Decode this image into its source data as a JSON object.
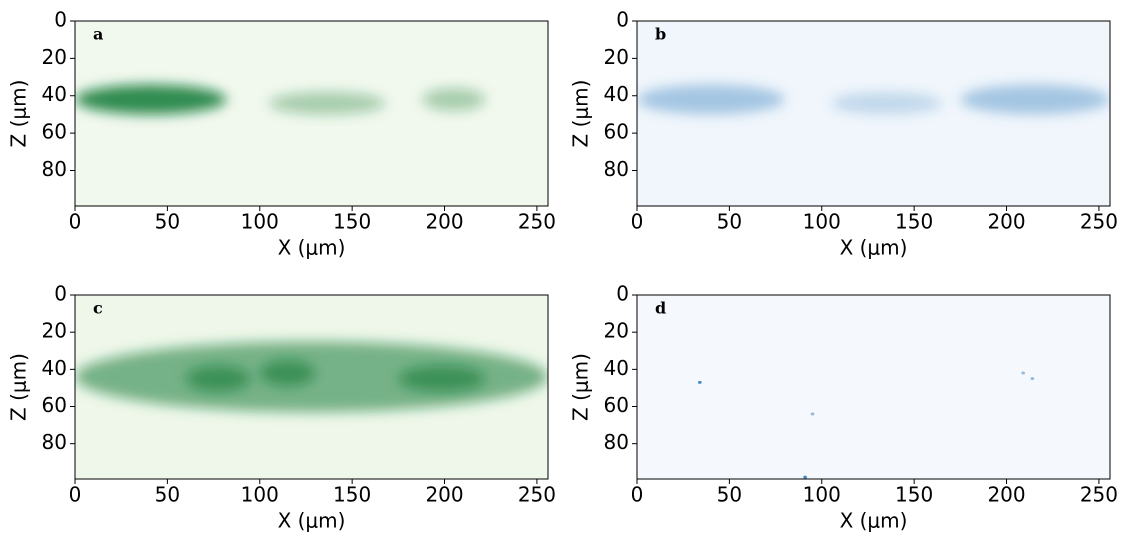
{
  "chart_data": [
    {
      "type": "image",
      "panel": "a",
      "xlabel": "X (μm)",
      "ylabel": "Z (μm)",
      "background": "#f1f8ee",
      "color": "#137a36",
      "xlim": [
        0,
        256
      ],
      "ylim": [
        99,
        0
      ],
      "xticks": [
        0,
        50,
        100,
        150,
        200,
        250
      ],
      "yticks": [
        0,
        20,
        40,
        60,
        80
      ],
      "bands": [
        {
          "x0": 0,
          "x1": 82,
          "z": 42,
          "height": 16,
          "intensity": 0.85
        },
        {
          "x0": 105,
          "x1": 168,
          "z": 44,
          "height": 12,
          "intensity": 0.35
        },
        {
          "x0": 188,
          "x1": 222,
          "z": 42,
          "height": 12,
          "intensity": 0.35
        }
      ]
    },
    {
      "type": "image",
      "panel": "b",
      "xlabel": "X (μm)",
      "ylabel": "Z (μm)",
      "background": "#f1f6fc",
      "color": "#2f7ebc",
      "xlim": [
        0,
        256
      ],
      "ylim": [
        99,
        0
      ],
      "xticks": [
        0,
        50,
        100,
        150,
        200,
        250
      ],
      "yticks": [
        0,
        20,
        40,
        60,
        80
      ],
      "bands": [
        {
          "x0": 0,
          "x1": 80,
          "z": 42,
          "height": 16,
          "intensity": 0.4
        },
        {
          "x0": 105,
          "x1": 165,
          "z": 44,
          "height": 12,
          "intensity": 0.25
        },
        {
          "x0": 175,
          "x1": 256,
          "z": 42,
          "height": 16,
          "intensity": 0.4
        }
      ]
    },
    {
      "type": "image",
      "panel": "c",
      "xlabel": "X (μm)",
      "ylabel": "Z (μm)",
      "background": "#eef7ea",
      "color": "#137a36",
      "xlim": [
        0,
        256
      ],
      "ylim": [
        99,
        0
      ],
      "xticks": [
        0,
        50,
        100,
        150,
        200,
        250
      ],
      "yticks": [
        0,
        20,
        40,
        60,
        80
      ],
      "bands": [
        {
          "x0": 0,
          "x1": 256,
          "z": 44,
          "height": 38,
          "intensity": 0.55
        },
        {
          "x0": 60,
          "x1": 95,
          "z": 45,
          "height": 14,
          "intensity": 0.6
        },
        {
          "x0": 100,
          "x1": 130,
          "z": 42,
          "height": 14,
          "intensity": 0.6
        },
        {
          "x0": 175,
          "x1": 222,
          "z": 45,
          "height": 14,
          "intensity": 0.6
        }
      ]
    },
    {
      "type": "image",
      "panel": "d",
      "xlabel": "X (μm)",
      "ylabel": "Z (μm)",
      "background": "#f5f9fe",
      "color": "#2f7ebc",
      "xlim": [
        0,
        256
      ],
      "ylim": [
        99,
        0
      ],
      "xticks": [
        0,
        50,
        100,
        150,
        200,
        250
      ],
      "yticks": [
        0,
        20,
        40,
        60,
        80
      ],
      "bands": [
        {
          "x0": 33,
          "x1": 35,
          "z": 47,
          "height": 1.5,
          "intensity": 0.9
        },
        {
          "x0": 90,
          "x1": 92,
          "z": 98,
          "height": 1.5,
          "intensity": 0.9
        },
        {
          "x0": 94,
          "x1": 96,
          "z": 64,
          "height": 1.5,
          "intensity": 0.5
        },
        {
          "x0": 208,
          "x1": 210,
          "z": 42,
          "height": 1.5,
          "intensity": 0.5
        },
        {
          "x0": 213,
          "x1": 215,
          "z": 45,
          "height": 1.5,
          "intensity": 0.5
        }
      ]
    }
  ]
}
